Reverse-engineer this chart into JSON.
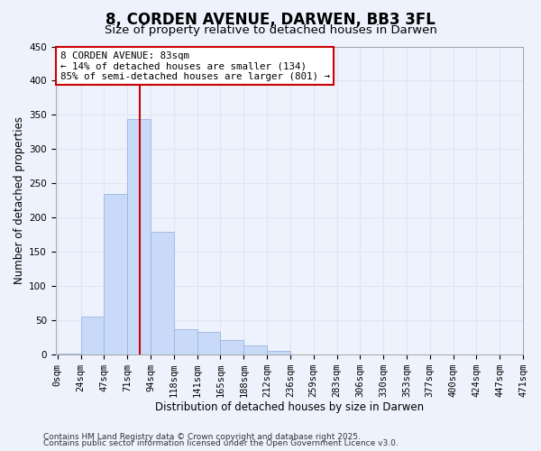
{
  "title": "8, CORDEN AVENUE, DARWEN, BB3 3FL",
  "subtitle": "Size of property relative to detached houses in Darwen",
  "xlabel": "Distribution of detached houses by size in Darwen",
  "ylabel": "Number of detached properties",
  "bar_left_edges": [
    0,
    23.5,
    47,
    70.5,
    94,
    117.5,
    141,
    164.5,
    188,
    211.5,
    235,
    258.5,
    282,
    305.5,
    329,
    352.5,
    376,
    399.5,
    423,
    446.5
  ],
  "bar_heights": [
    2,
    55,
    234,
    344,
    179,
    37,
    33,
    21,
    13,
    5,
    0,
    0,
    0,
    0,
    0,
    0,
    0,
    0,
    0,
    0
  ],
  "bar_width": 23.5,
  "bar_facecolor": "#c9daf8",
  "bar_edgecolor": "#9ab5e0",
  "tick_labels": [
    "0sqm",
    "24sqm",
    "47sqm",
    "71sqm",
    "94sqm",
    "118sqm",
    "141sqm",
    "165sqm",
    "188sqm",
    "212sqm",
    "236sqm",
    "259sqm",
    "283sqm",
    "306sqm",
    "330sqm",
    "353sqm",
    "377sqm",
    "400sqm",
    "424sqm",
    "447sqm",
    "471sqm"
  ],
  "tick_positions": [
    0,
    23.5,
    47,
    70.5,
    94,
    117.5,
    141,
    164.5,
    188,
    211.5,
    235,
    258.5,
    282,
    305.5,
    329,
    352.5,
    376,
    399.5,
    423,
    446.5,
    470
  ],
  "ylim": [
    0,
    450
  ],
  "xlim": [
    -2,
    470
  ],
  "yticks": [
    0,
    50,
    100,
    150,
    200,
    250,
    300,
    350,
    400,
    450
  ],
  "vline_x": 83,
  "vline_color": "#cc0000",
  "annotation_line1": "8 CORDEN AVENUE: 83sqm",
  "annotation_line2": "← 14% of detached houses are smaller (134)",
  "annotation_line3": "85% of semi-detached houses are larger (801) →",
  "annotation_box_edgecolor": "#cc0000",
  "annotation_box_facecolor": "#ffffff",
  "background_color": "#eef2fc",
  "grid_color": "#dce6f8",
  "footer1": "Contains HM Land Registry data © Crown copyright and database right 2025.",
  "footer2": "Contains public sector information licensed under the Open Government Licence v3.0.",
  "title_fontsize": 12,
  "subtitle_fontsize": 9.5,
  "label_fontsize": 8.5,
  "tick_fontsize": 7.5,
  "footer_fontsize": 6.5
}
